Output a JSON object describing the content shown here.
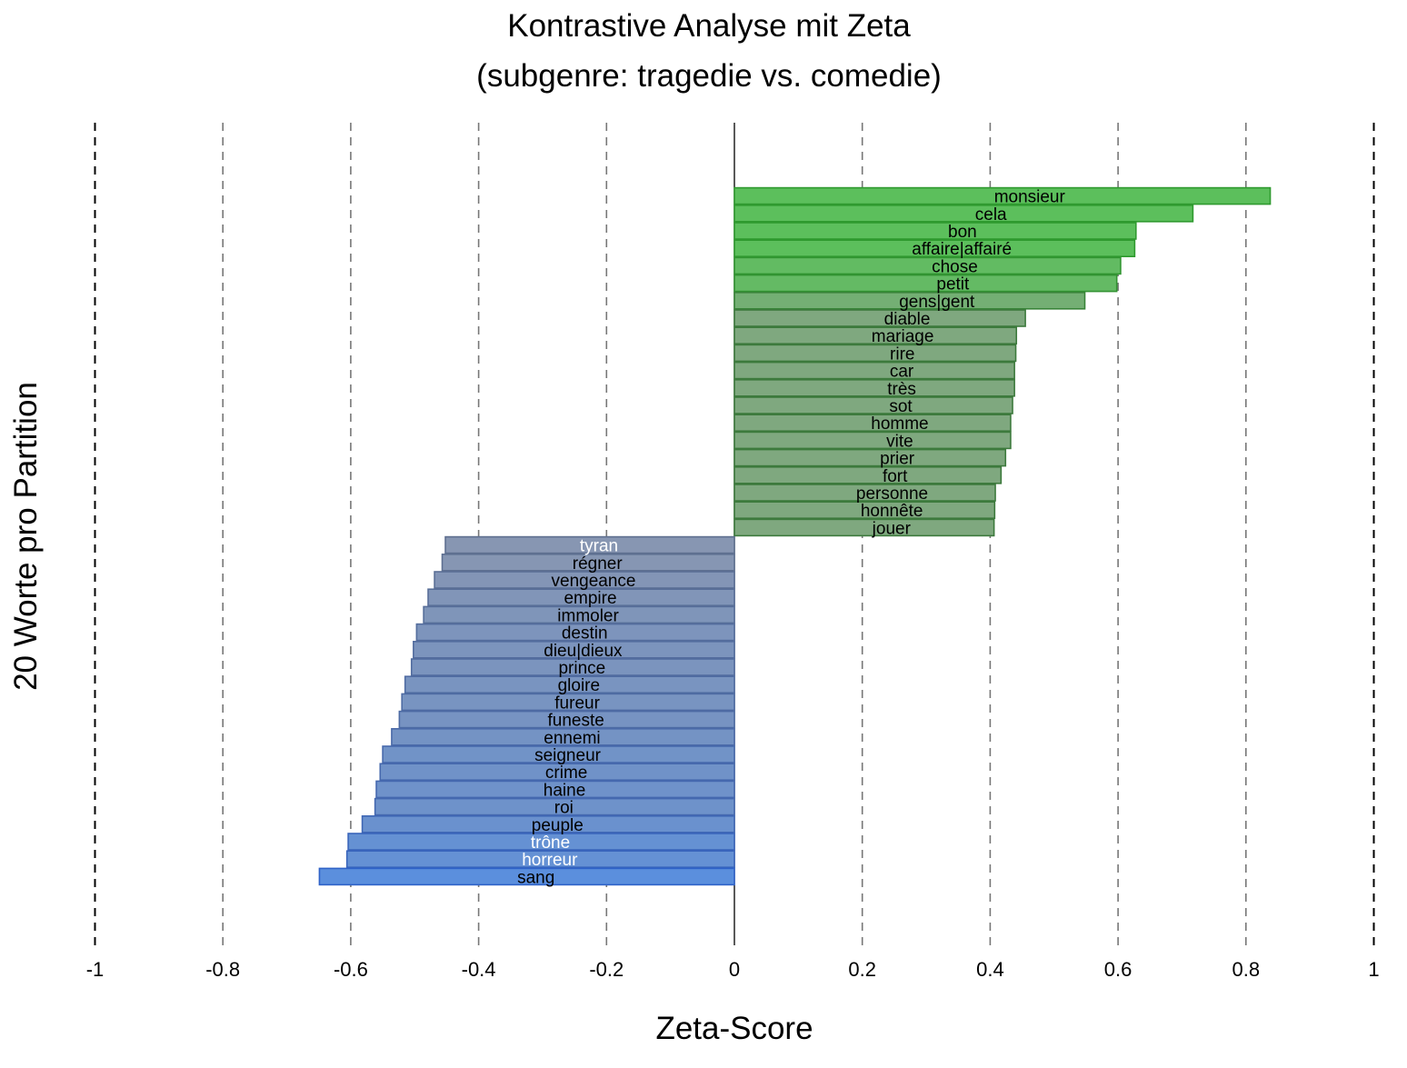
{
  "chart_data": {
    "type": "bar",
    "orientation": "horizontal",
    "title": "Kontrastive Analyse mit Zeta",
    "subtitle": "(subgenre: tragedie vs. comedie)",
    "xlabel": "Zeta-Score",
    "ylabel": "20 Worte pro Partition",
    "xlim": [
      -1,
      1
    ],
    "xticks": [
      "-1",
      "-0.8",
      "-0.6",
      "-0.4",
      "-0.2",
      "0",
      "0.2",
      "0.4",
      "0.6",
      "0.8",
      "1"
    ],
    "grid": "vertical dashed",
    "colors": {
      "positive": "#5cbf5c",
      "positive_muted": "#7fa87f",
      "negative": "#5b8fdd",
      "negative_muted": "#8796b2"
    },
    "categories": [
      "monsieur",
      "cela",
      "bon",
      "affaire|affairé",
      "chose",
      "petit",
      "gens|gent",
      "diable",
      "mariage",
      "rire",
      "car",
      "très",
      "sot",
      "homme",
      "vite",
      "prier",
      "fort",
      "personne",
      "honnête",
      "jouer",
      "tyran",
      "régner",
      "vengeance",
      "empire",
      "immoler",
      "destin",
      "dieu|dieux",
      "prince",
      "gloire",
      "fureur",
      "funeste",
      "ennemi",
      "seigneur",
      "crime",
      "haine",
      "roi",
      "peuple",
      "trône",
      "horreur",
      "sang"
    ],
    "values": [
      0.838,
      0.717,
      0.628,
      0.626,
      0.604,
      0.598,
      0.548,
      0.455,
      0.441,
      0.44,
      0.438,
      0.438,
      0.435,
      0.432,
      0.432,
      0.424,
      0.417,
      0.408,
      0.407,
      0.406,
      -0.452,
      -0.457,
      -0.469,
      -0.479,
      -0.486,
      -0.497,
      -0.502,
      -0.505,
      -0.515,
      -0.52,
      -0.524,
      -0.536,
      -0.55,
      -0.554,
      -0.56,
      -0.562,
      -0.582,
      -0.604,
      -0.606,
      -0.649
    ]
  }
}
